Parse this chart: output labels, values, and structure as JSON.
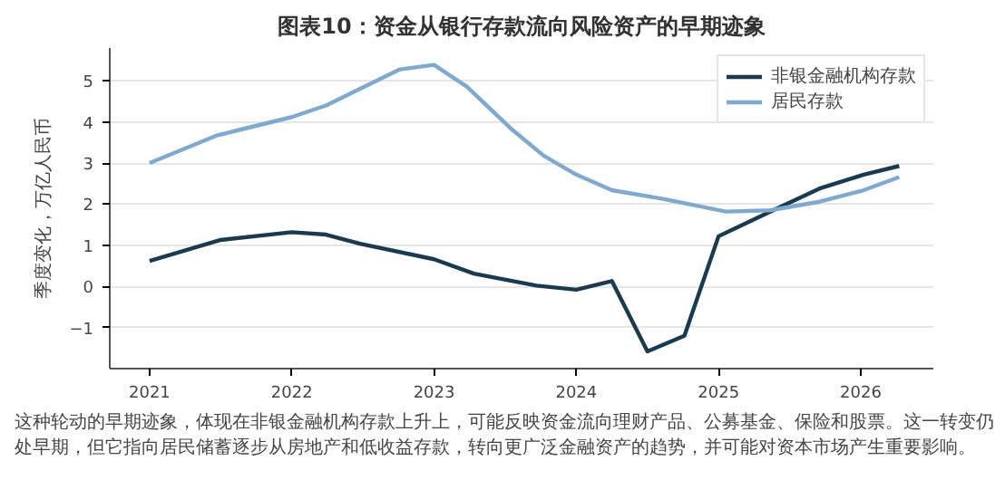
{
  "chart_data": {
    "type": "line",
    "title": "图表10：资金从银行存款流向风险资产的早期迹象",
    "ylabel": "季度变化，万亿人民币",
    "xlim": [
      2020.72,
      2026.51
    ],
    "xticks": [
      2021,
      2022,
      2023,
      2024,
      2025,
      2026
    ],
    "ylim": [
      -2,
      5.8
    ],
    "yticks": [
      -1,
      0,
      1,
      2,
      3,
      4,
      5
    ],
    "grid": "y",
    "legend": "top right",
    "line_style": "solid",
    "series": [
      {
        "name": "非银金融机构存款",
        "color": "#1a3a50",
        "x": [
          2021,
          2021.5,
          2022,
          2022.24,
          2022.48,
          2023,
          2023.28,
          2023.72,
          2024,
          2024.25,
          2024.5,
          2024.76,
          2025,
          2025.4,
          2025.71,
          2026.02,
          2026.27
        ],
        "values": [
          0.62,
          1.13,
          1.32,
          1.26,
          1.04,
          0.66,
          0.31,
          0.02,
          -0.08,
          0.13,
          -1.58,
          -1.2,
          1.22,
          1.88,
          2.38,
          2.72,
          2.93
        ]
      },
      {
        "name": "居民存款",
        "color": "#7fa9cf",
        "x": [
          2021,
          2021.47,
          2022,
          2022.24,
          2022.76,
          2023,
          2023.23,
          2023.55,
          2023.77,
          2024,
          2024.25,
          2024.61,
          2025.05,
          2025.36,
          2025.71,
          2026.02,
          2026.27
        ],
        "values": [
          3.0,
          3.67,
          4.12,
          4.4,
          5.28,
          5.39,
          4.86,
          3.81,
          3.18,
          2.72,
          2.34,
          2.13,
          1.82,
          1.85,
          2.06,
          2.34,
          2.66
        ]
      }
    ],
    "annotations": [
      "这种轮动的早期迹象，体现在非银金融机构存款上升上，可能反映资金流向理财产品、公募基金、保险和股票。这一转变仍处早期，但它指向居民储蓄逐步从房地产和低收益存款，转向更广泛金融资产的趋势，并可能对资本市场产生重要影响。"
    ]
  }
}
